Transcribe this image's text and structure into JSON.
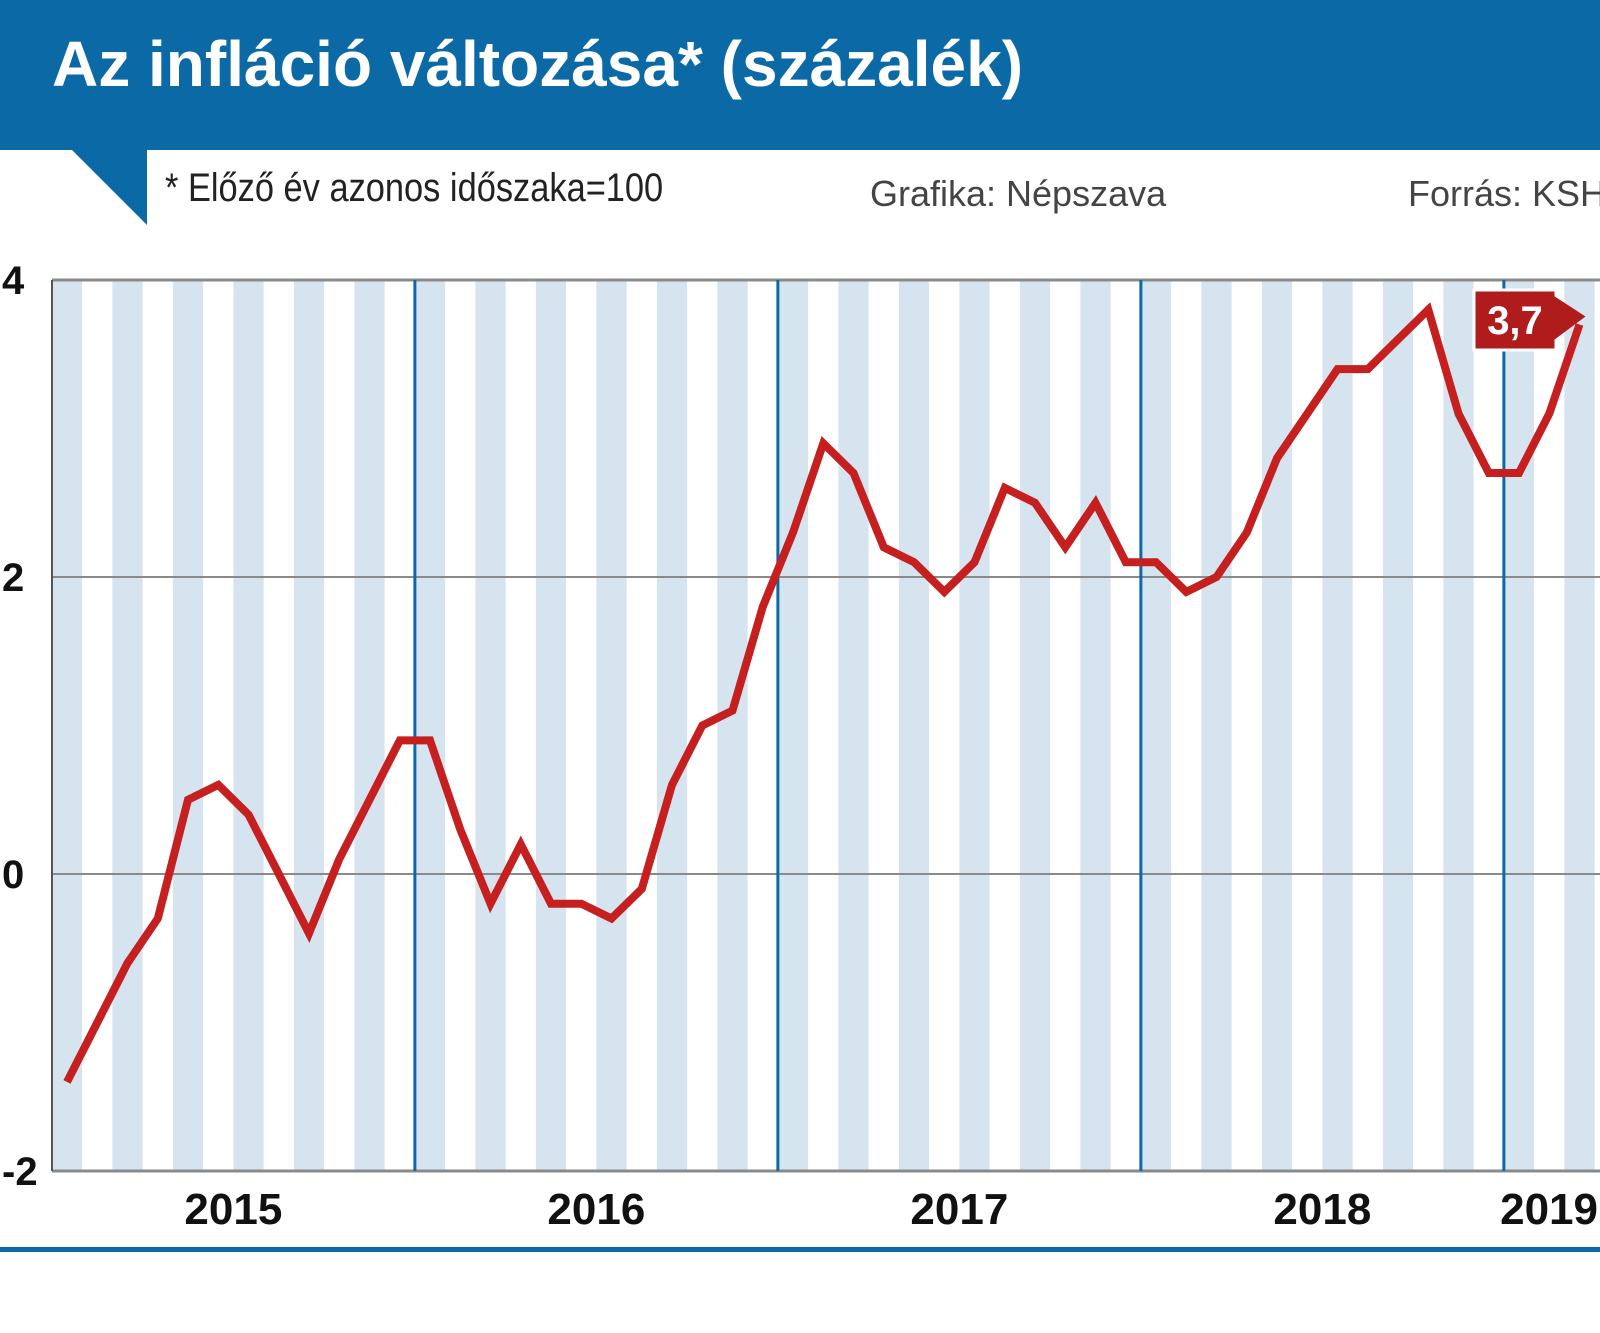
{
  "header": {
    "title": "Az infláció változása* (százalék)"
  },
  "subheader": {
    "note": "* Előző év azonos időszaka=100",
    "credit": "Grafika: Népszava",
    "source": "Forrás: KSH"
  },
  "colors": {
    "brand_blue": "#0b6aa6",
    "stripe": "#d5e4ef",
    "line": "#c5201f",
    "callout": "#b01c1c"
  },
  "chart_data": {
    "type": "line",
    "title": "Az infláció változása* (százalék)",
    "xlabel": "",
    "ylabel": "százalék",
    "ylim": [
      -2,
      4
    ],
    "y_ticks": [
      4,
      2,
      0,
      -2
    ],
    "y_tick_labels": [
      "4",
      "2",
      "0",
      "-2"
    ],
    "grid": true,
    "x_period_labels": [
      "2015",
      "2016",
      "2017",
      "2018",
      "2019"
    ],
    "year_boundaries_month_index": [
      12,
      24,
      36,
      48
    ],
    "series": [
      {
        "name": "Infláció (előző év azonos időszaka=100)",
        "values": [
          -1.4,
          -1.0,
          -0.6,
          -0.3,
          0.5,
          0.6,
          0.4,
          0.0,
          -0.4,
          0.1,
          0.5,
          0.9,
          0.9,
          0.3,
          -0.2,
          0.2,
          -0.2,
          -0.2,
          -0.3,
          -0.1,
          0.6,
          1.0,
          1.1,
          1.8,
          2.3,
          2.9,
          2.7,
          2.2,
          2.1,
          1.9,
          2.1,
          2.6,
          2.5,
          2.2,
          2.5,
          2.1,
          2.1,
          1.9,
          2.0,
          2.3,
          2.8,
          3.1,
          3.4,
          3.4,
          3.6,
          3.8,
          3.1,
          2.7,
          2.7,
          3.1,
          3.7
        ]
      }
    ],
    "annotations": [
      {
        "label": "3,7",
        "month_index": 50,
        "value": 3.7
      }
    ]
  }
}
